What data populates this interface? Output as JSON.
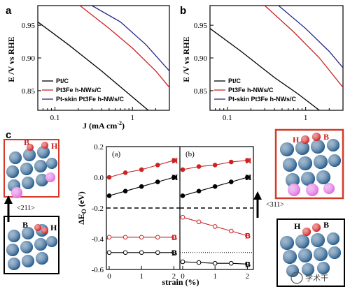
{
  "panel_labels": {
    "a": "a",
    "b": "b",
    "c": "c"
  },
  "colors": {
    "black": "#000000",
    "red": "#cc2222",
    "blue": "#22228c",
    "atom_blue": "#2a5f8f",
    "atom_red": "#d42020",
    "atom_pink": "#e070e0",
    "frame_red": "#d43a2a"
  },
  "chart_data": [
    {
      "id": "a",
      "type": "line",
      "xlabel": "J (mA cm-2)",
      "ylabel": "E /V vs RHE",
      "xscale": "log",
      "xlim": [
        0.06,
        3.0
      ],
      "ylim": [
        0.82,
        0.98
      ],
      "x_ticks": [
        "0.1",
        "1"
      ],
      "y_ticks": [
        "0.85",
        "0.90",
        "0.95"
      ],
      "legend": "bottom-left",
      "series": [
        {
          "name": "Pt/C",
          "color": "black",
          "x": [
            0.06,
            0.15,
            0.4,
            0.8,
            1.6
          ],
          "y": [
            0.955,
            0.92,
            0.88,
            0.85,
            0.82
          ]
        },
        {
          "name": "Pt3Fe h-NWs/C",
          "color": "red",
          "x": [
            0.21,
            0.5,
            1.0,
            2.0,
            3.0
          ],
          "y": [
            0.98,
            0.945,
            0.915,
            0.88,
            0.855
          ]
        },
        {
          "name": "Pt-skin Pt3Fe h-NWs/C",
          "color": "blue",
          "x": [
            0.3,
            0.7,
            1.5,
            3.0
          ],
          "y": [
            0.98,
            0.955,
            0.92,
            0.88
          ]
        }
      ]
    },
    {
      "id": "b",
      "type": "line",
      "xlabel": "",
      "ylabel": "E /V vs RHE",
      "xscale": "log",
      "xlim": [
        0.06,
        3.0
      ],
      "ylim": [
        0.82,
        0.98
      ],
      "x_ticks": [
        "0.1",
        "1"
      ],
      "y_ticks": [
        "0.85",
        "0.90",
        "0.95"
      ],
      "legend": "bottom-left",
      "series": [
        {
          "name": "Pt/C",
          "color": "black",
          "x": [
            0.06,
            0.15,
            0.4,
            0.8,
            1.5
          ],
          "y": [
            0.945,
            0.91,
            0.87,
            0.845,
            0.82
          ]
        },
        {
          "name": "Pt3Fe h-NWs/C",
          "color": "red",
          "x": [
            0.3,
            0.7,
            1.5,
            3.0
          ],
          "y": [
            0.98,
            0.94,
            0.9,
            0.855
          ]
        },
        {
          "name": "Pt-skin Pt3Fe h-NWs/C",
          "color": "blue",
          "x": [
            0.45,
            1.0,
            2.0,
            3.0
          ],
          "y": [
            0.98,
            0.945,
            0.91,
            0.885
          ]
        }
      ]
    },
    {
      "id": "c",
      "type": "scatter",
      "xlabel": "strain (%)",
      "ylabel": "ΔEO (eV)",
      "ylim": [
        -0.6,
        0.2
      ],
      "xlim": [
        0,
        2.1
      ],
      "x_ticks": [
        "0",
        "1",
        "2"
      ],
      "y_ticks": [
        "-0.6",
        "-0.4",
        "-0.2",
        "0.0",
        "0.2"
      ],
      "reference_line": -0.2,
      "subplots": [
        {
          "label": "(a)",
          "facet": "<211>",
          "series": [
            {
              "label": "H",
              "color": "red",
              "filled": true,
              "x": [
                0,
                0.5,
                1.0,
                1.5,
                2.0
              ],
              "y": [
                0.0,
                0.03,
                0.05,
                0.08,
                0.11
              ]
            },
            {
              "label": "H",
              "color": "black",
              "filled": true,
              "x": [
                0,
                0.5,
                1.0,
                1.5,
                2.0
              ],
              "y": [
                -0.12,
                -0.09,
                -0.06,
                -0.03,
                0.0
              ]
            },
            {
              "label": "B",
              "color": "red",
              "filled": false,
              "x": [
                0,
                0.5,
                1.0,
                1.5,
                2.0
              ],
              "y": [
                -0.39,
                -0.39,
                -0.39,
                -0.39,
                -0.39
              ]
            },
            {
              "label": "B",
              "color": "black",
              "filled": false,
              "x": [
                0,
                0.5,
                1.0,
                1.5,
                2.0
              ],
              "y": [
                -0.49,
                -0.49,
                -0.49,
                -0.49,
                -0.49
              ]
            }
          ]
        },
        {
          "label": "(b)",
          "facet": "<311>",
          "series": [
            {
              "label": "H",
              "color": "red",
              "filled": true,
              "x": [
                0,
                0.5,
                1.0,
                1.5,
                2.0
              ],
              "y": [
                0.05,
                0.07,
                0.08,
                0.1,
                0.11
              ]
            },
            {
              "label": "H",
              "color": "black",
              "filled": true,
              "x": [
                0,
                0.5,
                1.0,
                1.5,
                2.0
              ],
              "y": [
                -0.12,
                -0.09,
                -0.06,
                -0.03,
                0.0
              ]
            },
            {
              "label": "B",
              "color": "red",
              "filled": false,
              "x": [
                0,
                0.5,
                1.0,
                1.5,
                2.0
              ],
              "y": [
                -0.26,
                -0.29,
                -0.32,
                -0.35,
                -0.38
              ]
            },
            {
              "label": "B",
              "color": "black",
              "filled": false,
              "x": [
                0,
                0.5,
                1.0,
                1.5,
                2.0
              ],
              "y": [
                -0.55,
                -0.555,
                -0.56,
                -0.56,
                -0.565
              ]
            }
          ]
        }
      ]
    }
  ],
  "facets": {
    "left": "<211>",
    "right": "<311>"
  },
  "site_labels": {
    "bridge": "B",
    "hollow": "H"
  },
  "watermark": "学术干"
}
